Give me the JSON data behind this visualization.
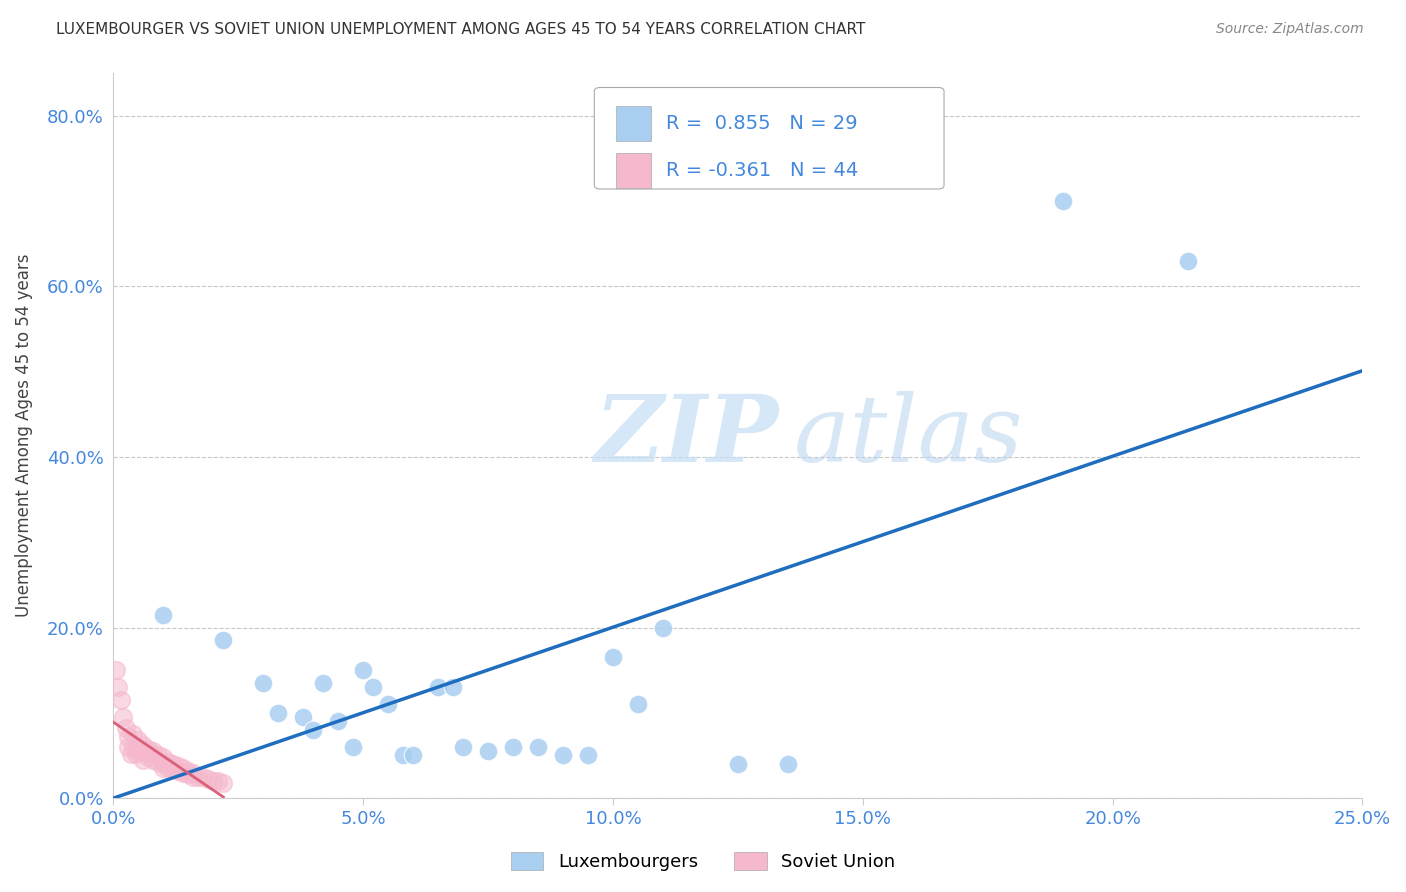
{
  "title": "LUXEMBOURGER VS SOVIET UNION UNEMPLOYMENT AMONG AGES 45 TO 54 YEARS CORRELATION CHART",
  "source": "Source: ZipAtlas.com",
  "ylabel": "Unemployment Among Ages 45 to 54 years",
  "xlim": [
    0.0,
    0.25
  ],
  "ylim": [
    0.0,
    0.85
  ],
  "xticks": [
    0.0,
    0.05,
    0.1,
    0.15,
    0.2,
    0.25
  ],
  "yticks": [
    0.0,
    0.2,
    0.4,
    0.6,
    0.8
  ],
  "blue_R": 0.855,
  "blue_N": 29,
  "pink_R": -0.361,
  "pink_N": 44,
  "watermark_zip": "ZIP",
  "watermark_atlas": "atlas",
  "legend_labels": [
    "Luxembourgers",
    "Soviet Union"
  ],
  "blue_scatter_x": [
    0.01,
    0.022,
    0.03,
    0.033,
    0.038,
    0.04,
    0.042,
    0.045,
    0.048,
    0.05,
    0.052,
    0.055,
    0.058,
    0.06,
    0.065,
    0.068,
    0.07,
    0.075,
    0.08,
    0.085,
    0.09,
    0.095,
    0.1,
    0.105,
    0.11,
    0.125,
    0.135,
    0.19,
    0.215
  ],
  "blue_scatter_y": [
    0.215,
    0.185,
    0.135,
    0.1,
    0.095,
    0.08,
    0.135,
    0.09,
    0.06,
    0.15,
    0.13,
    0.11,
    0.05,
    0.05,
    0.13,
    0.13,
    0.06,
    0.055,
    0.06,
    0.06,
    0.05,
    0.05,
    0.165,
    0.11,
    0.2,
    0.04,
    0.04,
    0.7,
    0.63
  ],
  "pink_scatter_x": [
    0.0005,
    0.001,
    0.0015,
    0.002,
    0.0025,
    0.003,
    0.003,
    0.0035,
    0.004,
    0.004,
    0.0045,
    0.005,
    0.005,
    0.006,
    0.006,
    0.006,
    0.007,
    0.007,
    0.0075,
    0.008,
    0.008,
    0.009,
    0.009,
    0.01,
    0.01,
    0.01,
    0.011,
    0.011,
    0.012,
    0.012,
    0.013,
    0.013,
    0.014,
    0.014,
    0.015,
    0.015,
    0.016,
    0.016,
    0.017,
    0.018,
    0.019,
    0.02,
    0.021,
    0.022
  ],
  "pink_scatter_y": [
    0.15,
    0.13,
    0.115,
    0.095,
    0.082,
    0.072,
    0.06,
    0.052,
    0.075,
    0.06,
    0.052,
    0.068,
    0.055,
    0.062,
    0.055,
    0.045,
    0.058,
    0.048,
    0.052,
    0.055,
    0.045,
    0.05,
    0.042,
    0.048,
    0.04,
    0.035,
    0.042,
    0.035,
    0.04,
    0.034,
    0.038,
    0.032,
    0.035,
    0.03,
    0.032,
    0.028,
    0.03,
    0.025,
    0.025,
    0.025,
    0.022,
    0.02,
    0.02,
    0.018
  ],
  "blue_color": "#a8cef0",
  "pink_color": "#f5b8cc",
  "blue_line_color": "#1f6dbf",
  "pink_line_color": "#d9607a",
  "grid_color": "#c8c8c8",
  "axis_color": "#cccccc",
  "tick_color": "#4488dd",
  "title_color": "#333333",
  "source_color": "#888888",
  "ylabel_color": "#444444",
  "background_color": "#ffffff",
  "legend_text_color": "#333333",
  "legend_value_color": "#4488dd"
}
